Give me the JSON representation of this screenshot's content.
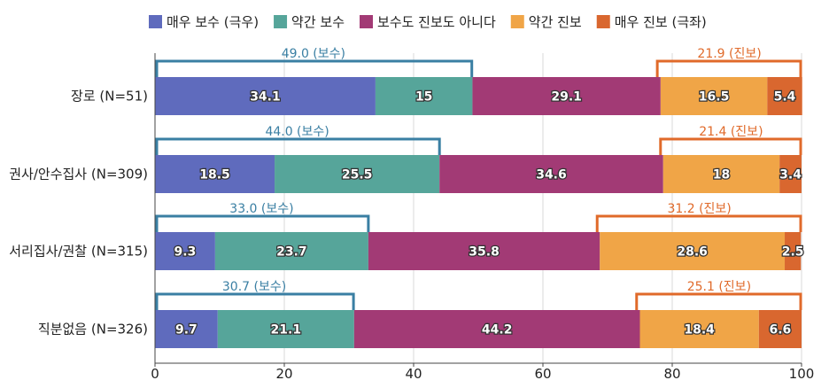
{
  "chart_data": {
    "type": "bar",
    "orientation": "horizontal",
    "stacked": true,
    "categories": [
      "장로 (N=51)",
      "권사/안수집사 (N=309)",
      "서리집사/권찰 (N=315)",
      "직분없음 (N=326)"
    ],
    "series": [
      {
        "name": "매우 보수 (극우)",
        "color": "#5f6bbd",
        "values": [
          34.1,
          18.5,
          9.3,
          9.7
        ]
      },
      {
        "name": "약간 보수",
        "color": "#56a59a",
        "values": [
          15,
          25.5,
          23.7,
          21.1
        ]
      },
      {
        "name": "보수도 진보도 아니다",
        "color": "#a23a75",
        "values": [
          29.1,
          34.6,
          35.8,
          44.2
        ]
      },
      {
        "name": "약간 진보",
        "color": "#f0a547",
        "values": [
          16.5,
          18,
          28.6,
          18.4
        ]
      },
      {
        "name": "매우 진보 (극좌)",
        "color": "#d9672f",
        "values": [
          5.4,
          3.4,
          2.5,
          6.6
        ]
      }
    ],
    "value_labels": [
      [
        "34.1",
        "18.5",
        "9.3",
        "9.7"
      ],
      [
        "15",
        "25.5",
        "23.7",
        "21.1"
      ],
      [
        "29.1",
        "34.6",
        "35.8",
        "44.2"
      ],
      [
        "16.5",
        "18",
        "28.6",
        "18.4"
      ],
      [
        "5.4",
        "3.4",
        "2.5",
        "6.6"
      ]
    ],
    "brackets": {
      "conservative": {
        "color": "#3a7fa3",
        "values": [
          49.0,
          44.0,
          33.0,
          30.7
        ],
        "labels": [
          "49.0 (보수)",
          "44.0 (보수)",
          "33.0 (보수)",
          "30.7 (보수)"
        ]
      },
      "progressive": {
        "color": "#e06a2a",
        "values": [
          21.9,
          21.4,
          31.2,
          25.1
        ],
        "labels": [
          "21.9 (진보)",
          "21.4 (진보)",
          "31.2 (진보)",
          "25.1 (진보)"
        ]
      }
    },
    "xlim": [
      0,
      100
    ],
    "xticks": [
      "0",
      "20",
      "40",
      "60",
      "80",
      "100"
    ],
    "xlabel": "",
    "ylabel": "",
    "grid": true,
    "legend_position": "top"
  }
}
